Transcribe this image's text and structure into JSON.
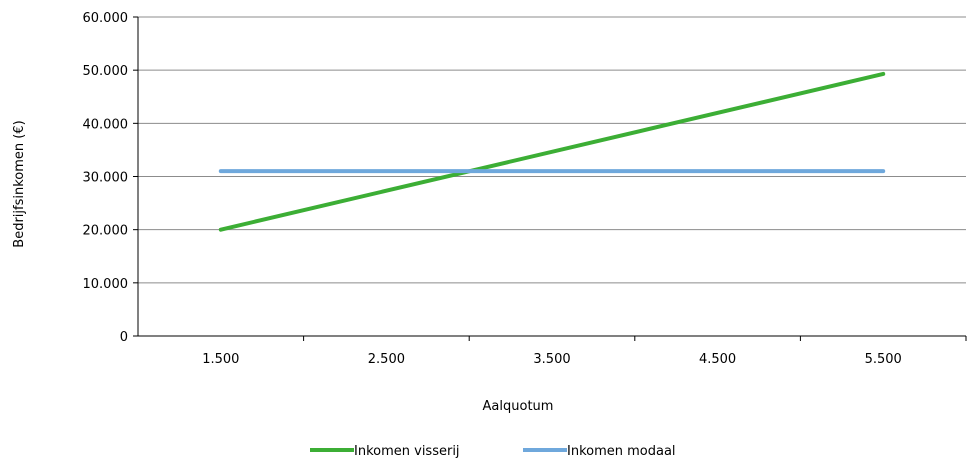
{
  "chart_data": {
    "type": "line",
    "x": [
      1500,
      5500
    ],
    "xticks": [
      "1.500",
      "2.500",
      "3.500",
      "4.500",
      "5.500"
    ],
    "yticks": [
      "0",
      "10.000",
      "20.000",
      "30.000",
      "40.000",
      "50.000",
      "60.000"
    ],
    "ylim": [
      0,
      60000
    ],
    "xlabel": "Aalquotum",
    "ylabel": "Bedrijfsinkomen (€)",
    "grid": true,
    "legend_position": "bottom",
    "series": [
      {
        "name": "Inkomen visserij",
        "color": "#3cae35",
        "values": [
          20000,
          49300
        ]
      },
      {
        "name": "Inkomen modaal",
        "color": "#6fa8dc",
        "values": [
          31000,
          31000
        ]
      }
    ]
  }
}
